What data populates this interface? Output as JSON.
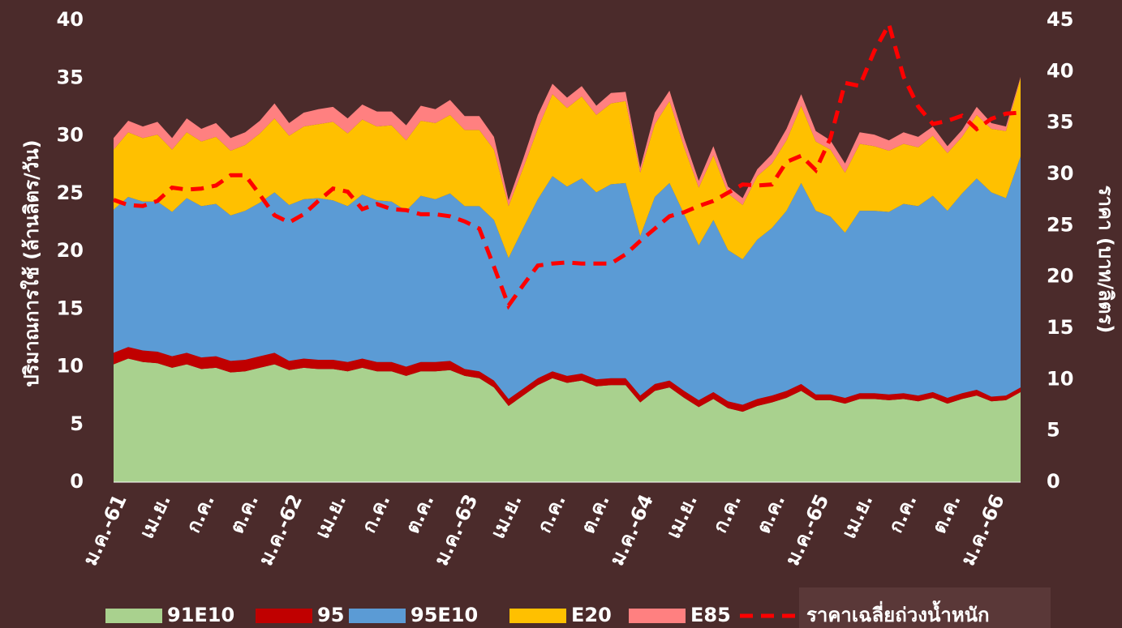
{
  "chart_data": {
    "type": "area",
    "stacked": true,
    "y_label": "ปริมาณการใช้ (ล้านลิตร/วัน)",
    "y2_label": "ราคา (บาท/ลิตร)",
    "categories": [
      "ม.ค.-61",
      null,
      null,
      "เม.ย.",
      null,
      null,
      "ก.ค.",
      null,
      null,
      "ต.ค.",
      null,
      null,
      "ม.ค.-62",
      null,
      null,
      "เม.ย.",
      null,
      null,
      "ก.ค.",
      null,
      null,
      "ต.ค.",
      null,
      null,
      "ม.ค.-63",
      null,
      null,
      "เม.ย.",
      null,
      null,
      "ก.ค.",
      null,
      null,
      "ต.ค.",
      null,
      null,
      "ม.ค.-64",
      null,
      null,
      "เม.ย.",
      null,
      null,
      "ก.ค.",
      null,
      null,
      "ต.ค.",
      null,
      null,
      "ม.ค.-65",
      null,
      null,
      "เม.ย.",
      null,
      null,
      "ก.ค.",
      null,
      null,
      "ต.ค.",
      null,
      null,
      "ม.ค.-66",
      null,
      null
    ],
    "ylim": [
      0,
      40
    ],
    "yticks": [
      0,
      5,
      10,
      15,
      20,
      25,
      30,
      35,
      40
    ],
    "y2lim": [
      0,
      45
    ],
    "y2ticks": [
      0,
      5,
      10,
      15,
      20,
      25,
      30,
      35,
      40,
      45
    ],
    "background": "#4b2b2b",
    "series": [
      {
        "name": "91E10",
        "color": "#a9d18e",
        "values": [
          10.2,
          10.7,
          10.4,
          10.3,
          9.9,
          10.2,
          9.8,
          9.9,
          9.5,
          9.6,
          9.9,
          10.2,
          9.7,
          9.9,
          9.8,
          9.8,
          9.6,
          9.9,
          9.6,
          9.6,
          9.2,
          9.6,
          9.6,
          9.7,
          9.2,
          9.0,
          8.2,
          6.6,
          7.5,
          8.4,
          9.0,
          8.6,
          8.8,
          8.3,
          8.4,
          8.4,
          6.9,
          7.9,
          8.2,
          7.3,
          6.5,
          7.2,
          6.4,
          6.1,
          6.6,
          6.9,
          7.3,
          7.9,
          7.1,
          7.1,
          6.8,
          7.2,
          7.2,
          7.1,
          7.2,
          7.0,
          7.3,
          6.8,
          7.2,
          7.5,
          7.0,
          7.1,
          7.8
        ]
      },
      {
        "name": "95",
        "color": "#c00000",
        "values": [
          1.0,
          1.0,
          1.0,
          1.0,
          1.0,
          1.0,
          1.0,
          1.0,
          1.0,
          1.0,
          1.0,
          1.0,
          0.8,
          0.8,
          0.8,
          0.8,
          0.8,
          0.8,
          0.8,
          0.8,
          0.8,
          0.8,
          0.8,
          0.8,
          0.6,
          0.6,
          0.6,
          0.6,
          0.6,
          0.6,
          0.6,
          0.6,
          0.6,
          0.6,
          0.6,
          0.6,
          0.6,
          0.6,
          0.6,
          0.6,
          0.6,
          0.6,
          0.6,
          0.6,
          0.6,
          0.6,
          0.6,
          0.6,
          0.5,
          0.5,
          0.5,
          0.5,
          0.5,
          0.5,
          0.5,
          0.5,
          0.5,
          0.5,
          0.5,
          0.5,
          0.4,
          0.4,
          0.4
        ]
      },
      {
        "name": "95E10",
        "color": "#5b9bd5",
        "values": [
          12.4,
          13.0,
          12.9,
          13.0,
          12.5,
          13.4,
          13.1,
          13.2,
          12.6,
          12.9,
          13.3,
          13.9,
          13.5,
          13.8,
          14.0,
          13.8,
          13.5,
          14.2,
          14.0,
          13.9,
          13.5,
          14.4,
          14.1,
          14.5,
          14.1,
          14.3,
          13.9,
          12.2,
          13.9,
          15.5,
          16.9,
          16.4,
          16.9,
          16.2,
          16.8,
          16.9,
          13.8,
          16.2,
          17.1,
          15.3,
          13.4,
          14.9,
          13.1,
          12.6,
          13.8,
          14.5,
          15.6,
          17.4,
          15.9,
          15.4,
          14.3,
          15.8,
          15.8,
          15.8,
          16.4,
          16.4,
          17.0,
          16.2,
          17.3,
          18.3,
          17.7,
          17.1,
          20.0
        ]
      },
      {
        "name": "E20",
        "color": "#ffc000",
        "values": [
          5.2,
          5.6,
          5.5,
          5.8,
          5.4,
          5.7,
          5.6,
          5.8,
          5.6,
          5.7,
          6.0,
          6.4,
          6.0,
          6.3,
          6.4,
          6.8,
          6.3,
          6.5,
          6.4,
          6.6,
          6.1,
          6.5,
          6.6,
          6.8,
          6.6,
          6.6,
          6.1,
          4.5,
          5.2,
          6.1,
          7.1,
          6.8,
          7.1,
          6.7,
          7.0,
          7.1,
          5.5,
          6.3,
          7.1,
          5.8,
          5.0,
          5.6,
          4.9,
          4.7,
          5.5,
          5.6,
          6.1,
          6.7,
          6.0,
          5.8,
          5.2,
          5.8,
          5.6,
          5.3,
          5.2,
          5.1,
          5.2,
          5.0,
          4.9,
          5.5,
          5.5,
          5.8,
          6.8
        ]
      },
      {
        "name": "E85",
        "color": "#ff8080",
        "values": [
          1.0,
          1.0,
          1.0,
          1.1,
          1.0,
          1.2,
          1.1,
          1.2,
          1.1,
          1.1,
          1.1,
          1.3,
          1.1,
          1.2,
          1.3,
          1.3,
          1.3,
          1.3,
          1.3,
          1.2,
          1.3,
          1.3,
          1.2,
          1.3,
          1.2,
          1.2,
          1.1,
          0.5,
          0.8,
          1.2,
          0.9,
          0.9,
          0.9,
          0.8,
          0.9,
          0.8,
          0.4,
          1.0,
          0.9,
          0.8,
          0.6,
          0.8,
          0.6,
          0.6,
          0.6,
          0.8,
          1.0,
          1.0,
          0.9,
          0.8,
          0.8,
          1.0,
          1.0,
          0.9,
          1.0,
          0.9,
          0.8,
          0.6,
          0.6,
          0.7,
          0.5,
          0.4,
          0.1
        ]
      },
      {
        "name": "ราคาเฉลี่ยถ่วงน้ำหนัก",
        "color": "#ff0000",
        "type": "line",
        "line_style": "dashed",
        "axis": "y2",
        "values": [
          27.5,
          27.0,
          26.9,
          27.4,
          28.7,
          28.5,
          28.6,
          28.9,
          29.9,
          29.9,
          28.0,
          26.0,
          25.3,
          26.1,
          27.4,
          28.6,
          28.3,
          26.6,
          27.1,
          26.6,
          26.5,
          26.1,
          26.1,
          25.9,
          25.4,
          24.7,
          21.0,
          17.2,
          19.2,
          21.1,
          21.3,
          21.4,
          21.3,
          21.3,
          21.3,
          22.2,
          23.5,
          24.7,
          25.9,
          26.3,
          26.9,
          27.4,
          28.2,
          29.0,
          28.9,
          29.0,
          31.2,
          31.8,
          30.4,
          33.5,
          38.9,
          38.6,
          42.0,
          44.6,
          39.5,
          36.6,
          34.9,
          35.2,
          35.7,
          34.4,
          35.4,
          35.9,
          36.0
        ]
      }
    ]
  }
}
